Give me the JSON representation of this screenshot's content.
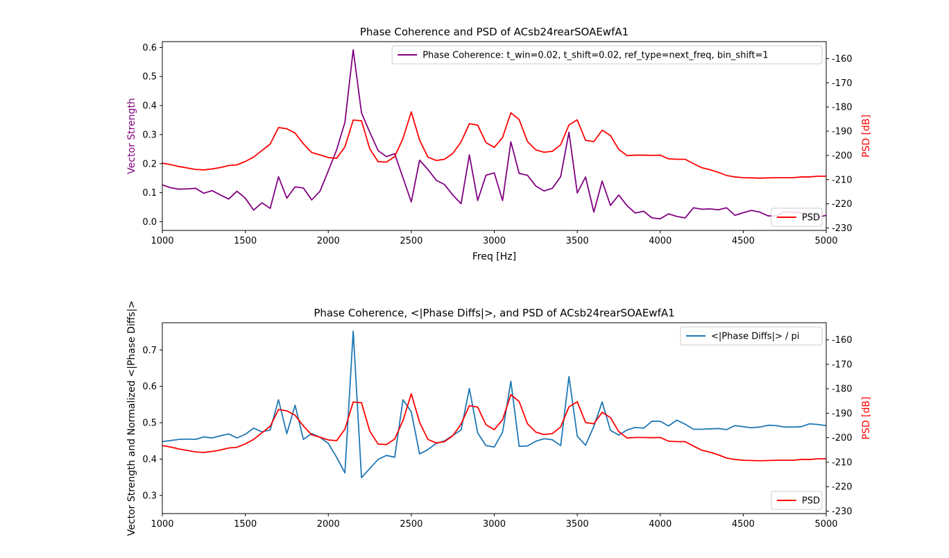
{
  "chart_data": [
    {
      "type": "line",
      "title": "Phase Coherence and PSD of ACsb24rearSOAEwfA1",
      "xlabel": "Freq [Hz]",
      "ylabel": "Vector Strength",
      "ylabel_right": "PSD [dB]",
      "xlim": [
        1000,
        5000
      ],
      "ylim": [
        -0.03,
        0.62
      ],
      "ylim_right": [
        -231,
        -153
      ],
      "x_ticks": [
        1000,
        1500,
        2000,
        2500,
        3000,
        3500,
        4000,
        4500,
        5000
      ],
      "y_ticks": [
        0.0,
        0.1,
        0.2,
        0.3,
        0.4,
        0.5,
        0.6
      ],
      "y_ticks_right": [
        -230,
        -220,
        -210,
        -200,
        -190,
        -180,
        -170,
        -160
      ],
      "grid": false,
      "legends": [
        {
          "location": "upper-right",
          "entries": [
            "Phase Coherence: t_win=0.02, t_shift=0.02, ref_type=next_freq, bin_shift=1"
          ]
        },
        {
          "location": "lower-right",
          "entries": [
            "PSD"
          ]
        }
      ],
      "series": [
        {
          "name": "Phase Coherence: t_win=0.02, t_shift=0.02, ref_type=next_freq, bin_shift=1",
          "color": "#800080",
          "axis": "left",
          "x": [
            1000,
            1050,
            1100,
            1150,
            1200,
            1250,
            1300,
            1350,
            1400,
            1450,
            1500,
            1550,
            1600,
            1650,
            1700,
            1750,
            1800,
            1850,
            1900,
            1950,
            2000,
            2050,
            2100,
            2150,
            2200,
            2250,
            2300,
            2350,
            2400,
            2450,
            2500,
            2550,
            2600,
            2650,
            2700,
            2750,
            2800,
            2850,
            2900,
            2950,
            3000,
            3050,
            3100,
            3150,
            3200,
            3250,
            3300,
            3350,
            3400,
            3450,
            3500,
            3550,
            3600,
            3650,
            3700,
            3750,
            3800,
            3850,
            3900,
            3950,
            4000,
            4050,
            4100,
            4150,
            4200,
            4250,
            4300,
            4350,
            4400,
            4450,
            4500,
            4550,
            4600,
            4650,
            4700,
            4750,
            4800,
            4850,
            4900,
            4950,
            5000
          ],
          "y": [
            0.127,
            0.117,
            0.112,
            0.113,
            0.115,
            0.098,
            0.107,
            0.092,
            0.078,
            0.105,
            0.081,
            0.04,
            0.065,
            0.046,
            0.155,
            0.081,
            0.12,
            0.116,
            0.075,
            0.105,
            0.175,
            0.247,
            0.342,
            0.592,
            0.375,
            0.308,
            0.245,
            0.224,
            0.234,
            0.151,
            0.068,
            0.212,
            0.18,
            0.143,
            0.128,
            0.092,
            0.062,
            0.23,
            0.073,
            0.16,
            0.168,
            0.073,
            0.275,
            0.166,
            0.16,
            0.123,
            0.106,
            0.115,
            0.155,
            0.308,
            0.099,
            0.154,
            0.033,
            0.14,
            0.056,
            0.092,
            0.055,
            0.03,
            0.036,
            0.013,
            0.01,
            0.027,
            0.018,
            0.013,
            0.048,
            0.043,
            0.044,
            0.041,
            0.048,
            0.022,
            0.031,
            0.039,
            0.033,
            0.02,
            0.02,
            0.034,
            0.032,
            0.03,
            0.028,
            0.015,
            0.022
          ]
        },
        {
          "name": "PSD",
          "color": "#ff0000",
          "axis": "right",
          "x": [
            1000,
            1050,
            1100,
            1150,
            1200,
            1250,
            1300,
            1350,
            1400,
            1450,
            1500,
            1550,
            1600,
            1650,
            1700,
            1750,
            1800,
            1850,
            1900,
            1950,
            2000,
            2050,
            2100,
            2150,
            2200,
            2250,
            2300,
            2350,
            2400,
            2450,
            2500,
            2550,
            2600,
            2650,
            2700,
            2750,
            2800,
            2850,
            2900,
            2950,
            3000,
            3050,
            3100,
            3150,
            3200,
            3250,
            3300,
            3350,
            3400,
            3450,
            3500,
            3550,
            3600,
            3650,
            3700,
            3750,
            3800,
            3850,
            3900,
            3950,
            4000,
            4050,
            4100,
            4150,
            4200,
            4250,
            4300,
            4350,
            4400,
            4450,
            4500,
            4550,
            4600,
            4650,
            4700,
            4750,
            4800,
            4850,
            4900,
            4950,
            5000
          ],
          "y": [
            -203.2,
            -203.8,
            -204.6,
            -205.2,
            -205.8,
            -206.0,
            -205.6,
            -205.0,
            -204.2,
            -203.9,
            -202.5,
            -200.7,
            -198.0,
            -195.3,
            -188.5,
            -189.0,
            -190.8,
            -195.2,
            -198.8,
            -199.8,
            -200.9,
            -201.2,
            -196.5,
            -185.4,
            -185.7,
            -197.3,
            -202.6,
            -202.8,
            -200.5,
            -193.0,
            -182.0,
            -193.7,
            -200.7,
            -202.1,
            -201.6,
            -199.2,
            -194.4,
            -186.9,
            -187.5,
            -194.7,
            -196.7,
            -192.6,
            -182.4,
            -185.2,
            -194.3,
            -197.7,
            -198.7,
            -198.3,
            -195.6,
            -187.4,
            -185.3,
            -193.8,
            -194.3,
            -189.6,
            -191.8,
            -197.5,
            -200.1,
            -199.9,
            -199.9,
            -200.0,
            -199.9,
            -201.4,
            -201.6,
            -201.6,
            -203.4,
            -205.1,
            -205.9,
            -207.0,
            -208.3,
            -208.9,
            -209.2,
            -209.3,
            -209.4,
            -209.3,
            -209.2,
            -209.2,
            -209.2,
            -208.9,
            -208.9,
            -208.6,
            -208.6
          ]
        }
      ]
    },
    {
      "type": "line",
      "title": "Phase Coherence, <|Phase Diffs|>, and PSD of ACsb24rearSOAEwfA1",
      "xlabel": "",
      "ylabel": "Vector Strength and Normalized <|Phase Diffs|>",
      "ylabel_right": "PSD [dB]",
      "xlim": [
        1000,
        5000
      ],
      "ylim": [
        0.25,
        0.775
      ],
      "ylim_right": [
        -231,
        -153
      ],
      "x_ticks": [
        1000,
        1500,
        2000,
        2500,
        3000,
        3500,
        4000,
        4500,
        5000
      ],
      "y_ticks": [
        0.3,
        0.4,
        0.5,
        0.6,
        0.7
      ],
      "y_ticks_right": [
        -230,
        -220,
        -210,
        -200,
        -190,
        -180,
        -170,
        -160
      ],
      "grid": false,
      "legends": [
        {
          "location": "upper-right",
          "entries": [
            "<|Phase Diffs|> / pi"
          ]
        },
        {
          "location": "lower-right",
          "entries": [
            "PSD"
          ]
        }
      ],
      "series": [
        {
          "name": "<|Phase Diffs|> / pi",
          "color": "#1f77b4",
          "axis": "left",
          "x": [
            1000,
            1050,
            1100,
            1150,
            1200,
            1250,
            1300,
            1350,
            1400,
            1450,
            1500,
            1550,
            1600,
            1650,
            1700,
            1750,
            1800,
            1850,
            1900,
            1950,
            2000,
            2050,
            2100,
            2150,
            2200,
            2250,
            2300,
            2350,
            2400,
            2450,
            2500,
            2550,
            2600,
            2650,
            2700,
            2750,
            2800,
            2850,
            2900,
            2950,
            3000,
            3050,
            3100,
            3150,
            3200,
            3250,
            3300,
            3350,
            3400,
            3450,
            3500,
            3550,
            3600,
            3650,
            3700,
            3750,
            3800,
            3850,
            3900,
            3950,
            4000,
            4050,
            4100,
            4150,
            4200,
            4250,
            4300,
            4350,
            4400,
            4450,
            4500,
            4550,
            4600,
            4650,
            4700,
            4750,
            4800,
            4850,
            4900,
            4950,
            5000
          ],
          "y": [
            0.448,
            0.451,
            0.454,
            0.455,
            0.454,
            0.461,
            0.458,
            0.464,
            0.469,
            0.458,
            0.468,
            0.485,
            0.475,
            0.48,
            0.563,
            0.47,
            0.548,
            0.454,
            0.47,
            0.46,
            0.443,
            0.405,
            0.362,
            0.752,
            0.349,
            0.374,
            0.399,
            0.41,
            0.405,
            0.563,
            0.53,
            0.414,
            0.426,
            0.443,
            0.45,
            0.465,
            0.48,
            0.594,
            0.472,
            0.437,
            0.433,
            0.474,
            0.614,
            0.435,
            0.436,
            0.449,
            0.456,
            0.453,
            0.437,
            0.627,
            0.463,
            0.438,
            0.49,
            0.557,
            0.479,
            0.466,
            0.48,
            0.487,
            0.485,
            0.504,
            0.504,
            0.491,
            0.507,
            0.496,
            0.482,
            0.482,
            0.483,
            0.484,
            0.481,
            0.492,
            0.489,
            0.486,
            0.488,
            0.493,
            0.492,
            0.488,
            0.488,
            0.489,
            0.497,
            0.495,
            0.492
          ]
        },
        {
          "name": "PSD",
          "color": "#ff0000",
          "axis": "right",
          "x": [
            1000,
            1050,
            1100,
            1150,
            1200,
            1250,
            1300,
            1350,
            1400,
            1450,
            1500,
            1550,
            1600,
            1650,
            1700,
            1750,
            1800,
            1850,
            1900,
            1950,
            2000,
            2050,
            2100,
            2150,
            2200,
            2250,
            2300,
            2350,
            2400,
            2450,
            2500,
            2550,
            2600,
            2650,
            2700,
            2750,
            2800,
            2850,
            2900,
            2950,
            3000,
            3050,
            3100,
            3150,
            3200,
            3250,
            3300,
            3350,
            3400,
            3450,
            3500,
            3550,
            3600,
            3650,
            3700,
            3750,
            3800,
            3850,
            3900,
            3950,
            4000,
            4050,
            4100,
            4150,
            4200,
            4250,
            4300,
            4350,
            4400,
            4450,
            4500,
            4550,
            4600,
            4650,
            4700,
            4750,
            4800,
            4850,
            4900,
            4950,
            5000
          ],
          "y": [
            -203.2,
            -203.8,
            -204.6,
            -205.2,
            -205.8,
            -206.0,
            -205.6,
            -205.0,
            -204.2,
            -203.9,
            -202.5,
            -200.7,
            -198.0,
            -195.3,
            -188.5,
            -189.0,
            -190.8,
            -195.2,
            -198.8,
            -199.8,
            -200.9,
            -201.2,
            -196.5,
            -185.4,
            -185.7,
            -197.3,
            -202.6,
            -202.8,
            -200.5,
            -193.0,
            -182.0,
            -193.7,
            -200.7,
            -202.1,
            -201.6,
            -199.2,
            -194.4,
            -186.9,
            -187.5,
            -194.7,
            -196.7,
            -192.6,
            -182.4,
            -185.2,
            -194.3,
            -197.7,
            -198.7,
            -198.3,
            -195.6,
            -187.4,
            -185.3,
            -193.8,
            -194.3,
            -189.6,
            -191.8,
            -197.5,
            -200.1,
            -199.9,
            -199.9,
            -200.0,
            -199.9,
            -201.4,
            -201.6,
            -201.6,
            -203.4,
            -205.1,
            -205.9,
            -207.0,
            -208.3,
            -208.9,
            -209.2,
            -209.3,
            -209.4,
            -209.3,
            -209.2,
            -209.2,
            -209.2,
            -208.9,
            -208.9,
            -208.6,
            -208.6
          ]
        }
      ]
    }
  ]
}
